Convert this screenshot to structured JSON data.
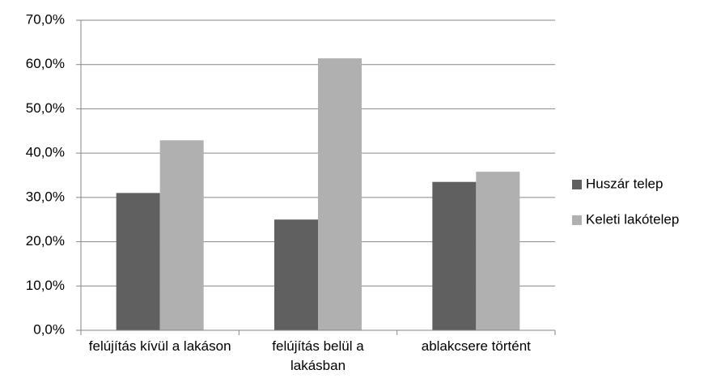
{
  "chart_data": {
    "type": "bar",
    "categories": [
      "felújítás kívül a lakáson",
      "felújítás belül a lakásban",
      "ablakcsere történt"
    ],
    "series": [
      {
        "name": "Huszár telep",
        "color": "#606060",
        "values": [
          31.0,
          25.0,
          33.5
        ]
      },
      {
        "name": "Keleti lakótelep",
        "color": "#b0b0b0",
        "values": [
          42.9,
          61.4,
          35.8
        ]
      }
    ],
    "ylim": [
      0,
      70
    ],
    "yticks": [
      {
        "value": 0,
        "label": "0,0%"
      },
      {
        "value": 10,
        "label": "10,0%"
      },
      {
        "value": 20,
        "label": "20,0%"
      },
      {
        "value": 30,
        "label": "30,0%"
      },
      {
        "value": 40,
        "label": "40,0%"
      },
      {
        "value": 50,
        "label": "50,0%"
      },
      {
        "value": 60,
        "label": "60,0%"
      },
      {
        "value": 70,
        "label": "70,0%"
      }
    ],
    "grid": true,
    "legend": "right"
  }
}
